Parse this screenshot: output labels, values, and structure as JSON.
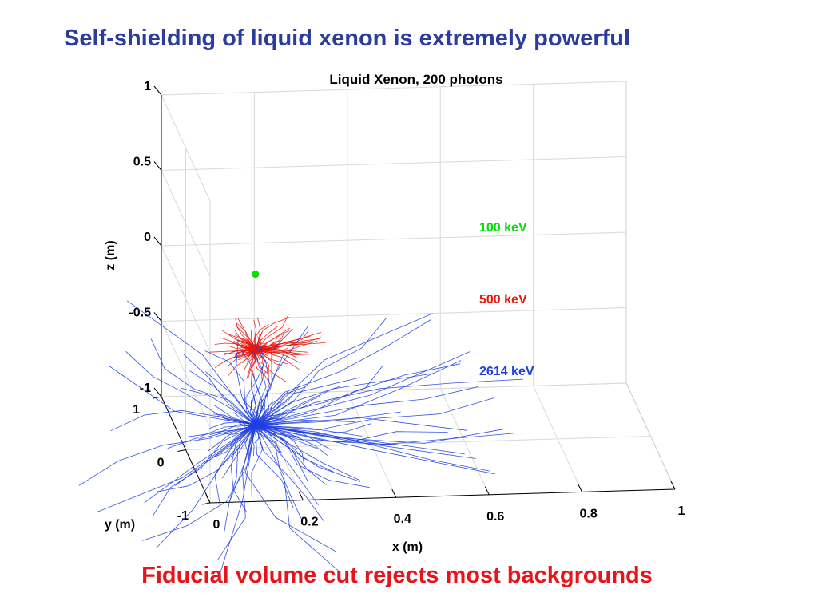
{
  "slide": {
    "title": "Self-shielding of liquid xenon is extremely powerful",
    "caption": "Fiducial volume cut rejects most backgrounds"
  },
  "chart_data": {
    "type": "scatter",
    "projection": "3d",
    "title": "Liquid Xenon, 200 photons",
    "xlabel": "x (m)",
    "ylabel": "y (m)",
    "zlabel": "z (m)",
    "xlim": [
      0,
      1
    ],
    "ylim": [
      -1,
      1
    ],
    "zlim": [
      -1,
      1
    ],
    "xticks": [
      "0",
      "0.2",
      "0.4",
      "0.6",
      "0.8",
      "1"
    ],
    "yticks": [
      "1",
      "0",
      "-1"
    ],
    "zticks": [
      "1",
      "0.5",
      "0",
      "-0.5",
      "-1"
    ],
    "grid": true,
    "series": [
      {
        "name": "100 keV",
        "color": "#00e000",
        "origin": [
          0.15,
          0.0,
          0.15
        ],
        "max_track_length": 0.0
      },
      {
        "name": "500 keV",
        "color": "#e8160c",
        "origin": [
          0.15,
          0.0,
          -0.35
        ],
        "max_track_length": 0.12
      },
      {
        "name": "2614 keV",
        "color": "#1f3fe0",
        "origin": [
          0.15,
          0.0,
          -0.85
        ],
        "max_track_length": 0.45
      }
    ]
  }
}
